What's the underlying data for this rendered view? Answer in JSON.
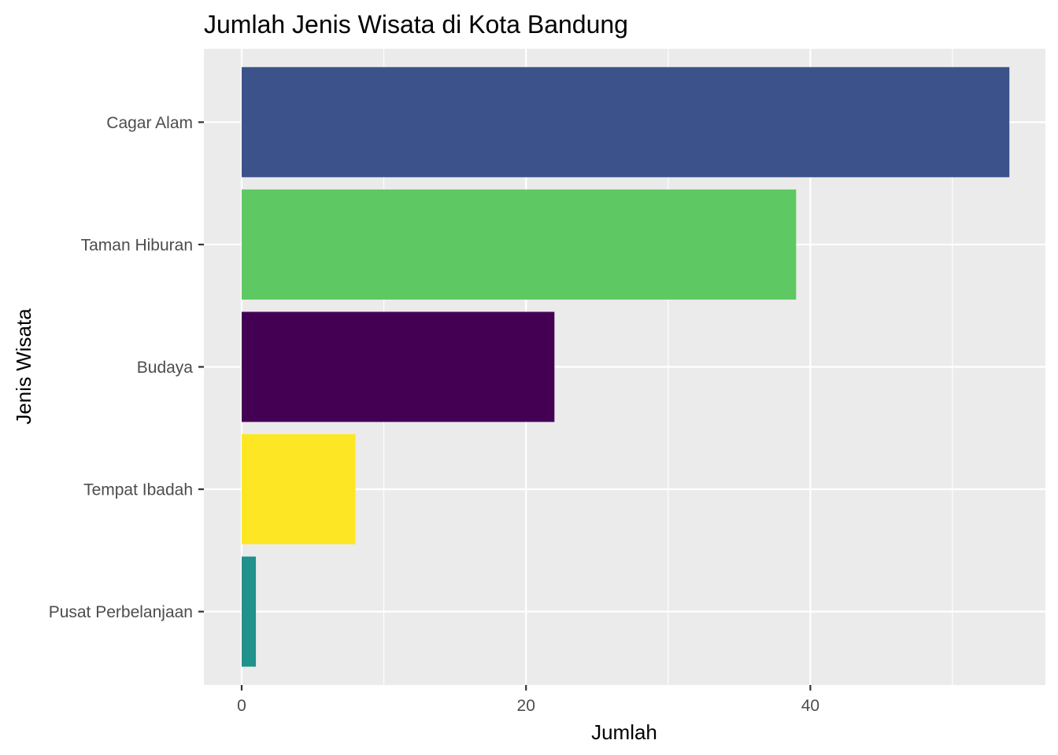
{
  "chart_data": {
    "type": "bar",
    "orientation": "horizontal",
    "title": "Jumlah Jenis Wisata di Kota Bandung",
    "xlabel": "Jumlah",
    "ylabel": "Jenis Wisata",
    "categories": [
      "Cagar Alam",
      "Taman Hiburan",
      "Budaya",
      "Tempat Ibadah",
      "Pusat Perbelanjaan"
    ],
    "values": [
      54,
      39,
      22,
      8,
      1
    ],
    "colors": [
      "#3B528B",
      "#5EC962",
      "#440154",
      "#FDE725",
      "#21918C"
    ],
    "xticks": [
      0,
      20,
      40
    ],
    "xlim": [
      0,
      56.7
    ],
    "grid": true,
    "legend": "none",
    "background": "#EBEBEB"
  }
}
